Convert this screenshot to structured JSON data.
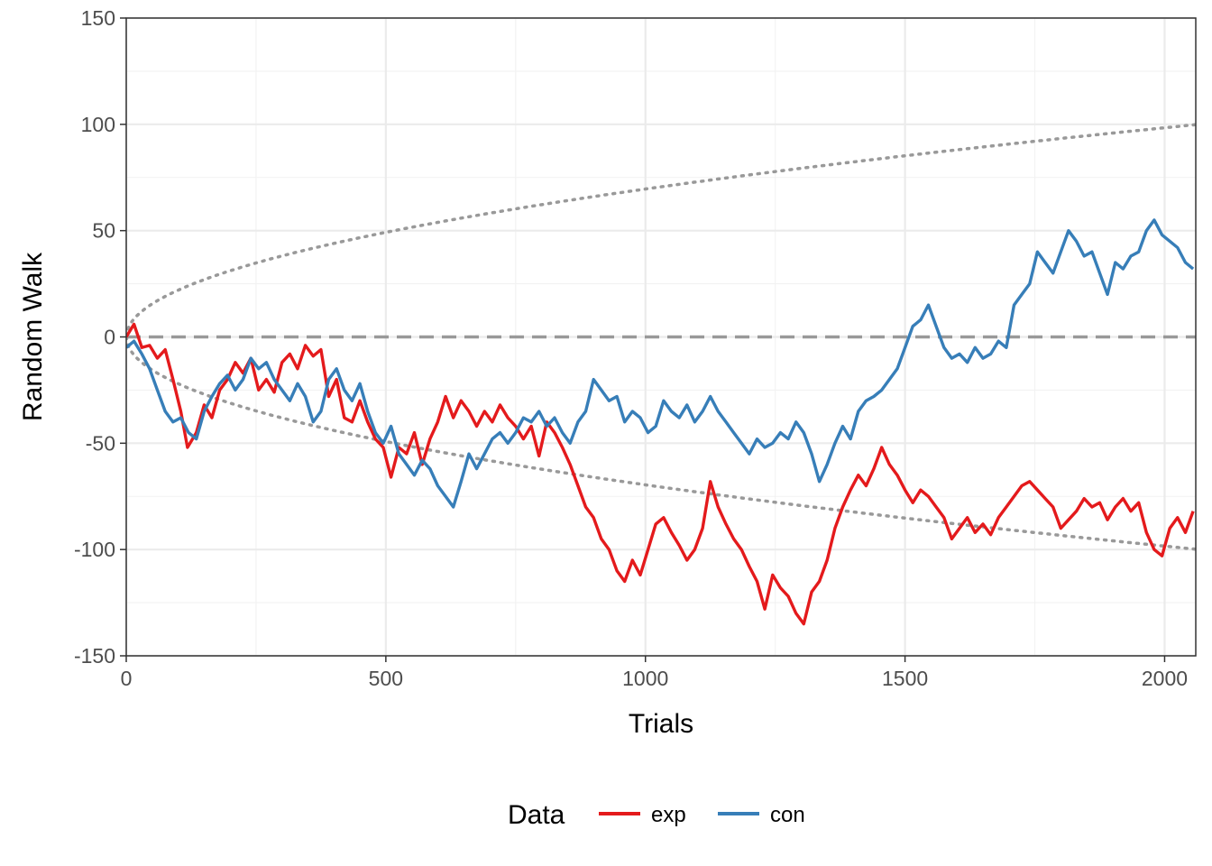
{
  "chart_data": {
    "type": "line",
    "title": "",
    "xlabel": "Trials",
    "ylabel": "Random Walk",
    "xlim": [
      0,
      2060
    ],
    "ylim": [
      -150,
      150
    ],
    "x_ticks": [
      0,
      500,
      1000,
      1500,
      2000
    ],
    "y_ticks": [
      -150,
      -100,
      -50,
      0,
      50,
      100,
      150
    ],
    "x_tick_labels": [
      "0",
      "500",
      "1000",
      "1500",
      "2000"
    ],
    "y_tick_labels": [
      "-150",
      "-100",
      "-50",
      "0",
      "50",
      "100",
      "150"
    ],
    "grid": true,
    "legend": {
      "title": "Data",
      "position": "bottom",
      "entries": [
        {
          "label": "exp",
          "color": "#e41a1c"
        },
        {
          "label": "con",
          "color": "#377eb8"
        }
      ]
    },
    "reference_lines": {
      "zero_line": {
        "y": 0,
        "style": "dashed",
        "color": "#999999"
      },
      "bounds": {
        "formula": "±sqrt(N) times approx 2.2",
        "style": "dotted",
        "color": "#999999"
      }
    },
    "series": [
      {
        "name": "exp",
        "color": "#e41a1c",
        "points": [
          [
            0,
            0
          ],
          [
            15,
            6
          ],
          [
            30,
            -5
          ],
          [
            45,
            -4
          ],
          [
            60,
            -10
          ],
          [
            75,
            -6
          ],
          [
            90,
            -20
          ],
          [
            105,
            -35
          ],
          [
            118,
            -52
          ],
          [
            135,
            -45
          ],
          [
            150,
            -32
          ],
          [
            165,
            -38
          ],
          [
            180,
            -25
          ],
          [
            195,
            -20
          ],
          [
            210,
            -12
          ],
          [
            225,
            -17
          ],
          [
            240,
            -10
          ],
          [
            255,
            -25
          ],
          [
            270,
            -20
          ],
          [
            285,
            -26
          ],
          [
            300,
            -12
          ],
          [
            315,
            -8
          ],
          [
            330,
            -15
          ],
          [
            345,
            -4
          ],
          [
            360,
            -9
          ],
          [
            375,
            -6
          ],
          [
            390,
            -28
          ],
          [
            405,
            -20
          ],
          [
            420,
            -38
          ],
          [
            435,
            -40
          ],
          [
            450,
            -30
          ],
          [
            465,
            -40
          ],
          [
            480,
            -48
          ],
          [
            495,
            -52
          ],
          [
            510,
            -66
          ],
          [
            525,
            -52
          ],
          [
            540,
            -55
          ],
          [
            555,
            -45
          ],
          [
            570,
            -60
          ],
          [
            585,
            -48
          ],
          [
            600,
            -40
          ],
          [
            615,
            -28
          ],
          [
            630,
            -38
          ],
          [
            645,
            -30
          ],
          [
            660,
            -35
          ],
          [
            675,
            -42
          ],
          [
            690,
            -35
          ],
          [
            705,
            -40
          ],
          [
            720,
            -32
          ],
          [
            735,
            -38
          ],
          [
            750,
            -42
          ],
          [
            765,
            -48
          ],
          [
            780,
            -42
          ],
          [
            795,
            -56
          ],
          [
            810,
            -40
          ],
          [
            825,
            -45
          ],
          [
            840,
            -52
          ],
          [
            855,
            -60
          ],
          [
            870,
            -70
          ],
          [
            885,
            -80
          ],
          [
            900,
            -85
          ],
          [
            915,
            -95
          ],
          [
            930,
            -100
          ],
          [
            945,
            -110
          ],
          [
            960,
            -115
          ],
          [
            975,
            -105
          ],
          [
            990,
            -112
          ],
          [
            1005,
            -100
          ],
          [
            1020,
            -88
          ],
          [
            1035,
            -85
          ],
          [
            1050,
            -92
          ],
          [
            1065,
            -98
          ],
          [
            1080,
            -105
          ],
          [
            1095,
            -100
          ],
          [
            1110,
            -90
          ],
          [
            1125,
            -68
          ],
          [
            1140,
            -80
          ],
          [
            1155,
            -88
          ],
          [
            1170,
            -95
          ],
          [
            1185,
            -100
          ],
          [
            1200,
            -108
          ],
          [
            1215,
            -115
          ],
          [
            1230,
            -128
          ],
          [
            1245,
            -112
          ],
          [
            1260,
            -118
          ],
          [
            1275,
            -122
          ],
          [
            1290,
            -130
          ],
          [
            1305,
            -135
          ],
          [
            1320,
            -120
          ],
          [
            1335,
            -115
          ],
          [
            1350,
            -105
          ],
          [
            1365,
            -90
          ],
          [
            1380,
            -80
          ],
          [
            1395,
            -72
          ],
          [
            1410,
            -65
          ],
          [
            1425,
            -70
          ],
          [
            1440,
            -62
          ],
          [
            1455,
            -52
          ],
          [
            1470,
            -60
          ],
          [
            1485,
            -65
          ],
          [
            1500,
            -72
          ],
          [
            1515,
            -78
          ],
          [
            1530,
            -72
          ],
          [
            1545,
            -75
          ],
          [
            1560,
            -80
          ],
          [
            1575,
            -85
          ],
          [
            1590,
            -95
          ],
          [
            1605,
            -90
          ],
          [
            1620,
            -85
          ],
          [
            1635,
            -92
          ],
          [
            1650,
            -88
          ],
          [
            1665,
            -93
          ],
          [
            1680,
            -85
          ],
          [
            1695,
            -80
          ],
          [
            1710,
            -75
          ],
          [
            1725,
            -70
          ],
          [
            1740,
            -68
          ],
          [
            1755,
            -72
          ],
          [
            1770,
            -76
          ],
          [
            1785,
            -80
          ],
          [
            1800,
            -90
          ],
          [
            1815,
            -86
          ],
          [
            1830,
            -82
          ],
          [
            1845,
            -76
          ],
          [
            1860,
            -80
          ],
          [
            1875,
            -78
          ],
          [
            1890,
            -86
          ],
          [
            1905,
            -80
          ],
          [
            1920,
            -76
          ],
          [
            1935,
            -82
          ],
          [
            1950,
            -78
          ],
          [
            1965,
            -92
          ],
          [
            1980,
            -100
          ],
          [
            1995,
            -103
          ],
          [
            2010,
            -90
          ],
          [
            2025,
            -85
          ],
          [
            2040,
            -92
          ],
          [
            2055,
            -82
          ]
        ]
      },
      {
        "name": "con",
        "color": "#377eb8",
        "points": [
          [
            0,
            -5
          ],
          [
            15,
            -2
          ],
          [
            30,
            -8
          ],
          [
            45,
            -15
          ],
          [
            60,
            -25
          ],
          [
            75,
            -35
          ],
          [
            90,
            -40
          ],
          [
            105,
            -38
          ],
          [
            120,
            -45
          ],
          [
            135,
            -48
          ],
          [
            150,
            -35
          ],
          [
            165,
            -28
          ],
          [
            180,
            -22
          ],
          [
            195,
            -18
          ],
          [
            210,
            -25
          ],
          [
            225,
            -20
          ],
          [
            240,
            -10
          ],
          [
            255,
            -15
          ],
          [
            270,
            -12
          ],
          [
            285,
            -20
          ],
          [
            300,
            -25
          ],
          [
            315,
            -30
          ],
          [
            330,
            -22
          ],
          [
            345,
            -28
          ],
          [
            360,
            -40
          ],
          [
            375,
            -35
          ],
          [
            390,
            -20
          ],
          [
            405,
            -15
          ],
          [
            420,
            -25
          ],
          [
            435,
            -30
          ],
          [
            450,
            -22
          ],
          [
            465,
            -35
          ],
          [
            480,
            -45
          ],
          [
            495,
            -50
          ],
          [
            510,
            -42
          ],
          [
            525,
            -55
          ],
          [
            540,
            -60
          ],
          [
            555,
            -65
          ],
          [
            570,
            -58
          ],
          [
            585,
            -62
          ],
          [
            600,
            -70
          ],
          [
            615,
            -75
          ],
          [
            630,
            -80
          ],
          [
            645,
            -68
          ],
          [
            660,
            -55
          ],
          [
            675,
            -62
          ],
          [
            690,
            -55
          ],
          [
            705,
            -48
          ],
          [
            720,
            -45
          ],
          [
            735,
            -50
          ],
          [
            750,
            -45
          ],
          [
            765,
            -38
          ],
          [
            780,
            -40
          ],
          [
            795,
            -35
          ],
          [
            810,
            -42
          ],
          [
            825,
            -38
          ],
          [
            840,
            -45
          ],
          [
            855,
            -50
          ],
          [
            870,
            -40
          ],
          [
            885,
            -35
          ],
          [
            900,
            -20
          ],
          [
            915,
            -25
          ],
          [
            930,
            -30
          ],
          [
            945,
            -28
          ],
          [
            960,
            -40
          ],
          [
            975,
            -35
          ],
          [
            990,
            -38
          ],
          [
            1005,
            -45
          ],
          [
            1020,
            -42
          ],
          [
            1035,
            -30
          ],
          [
            1050,
            -35
          ],
          [
            1065,
            -38
          ],
          [
            1080,
            -32
          ],
          [
            1095,
            -40
          ],
          [
            1110,
            -35
          ],
          [
            1125,
            -28
          ],
          [
            1140,
            -35
          ],
          [
            1155,
            -40
          ],
          [
            1170,
            -45
          ],
          [
            1185,
            -50
          ],
          [
            1200,
            -55
          ],
          [
            1215,
            -48
          ],
          [
            1230,
            -52
          ],
          [
            1245,
            -50
          ],
          [
            1260,
            -45
          ],
          [
            1275,
            -48
          ],
          [
            1290,
            -40
          ],
          [
            1305,
            -45
          ],
          [
            1320,
            -55
          ],
          [
            1335,
            -68
          ],
          [
            1350,
            -60
          ],
          [
            1365,
            -50
          ],
          [
            1380,
            -42
          ],
          [
            1395,
            -48
          ],
          [
            1410,
            -35
          ],
          [
            1425,
            -30
          ],
          [
            1440,
            -28
          ],
          [
            1455,
            -25
          ],
          [
            1470,
            -20
          ],
          [
            1485,
            -15
          ],
          [
            1500,
            -5
          ],
          [
            1515,
            5
          ],
          [
            1530,
            8
          ],
          [
            1545,
            15
          ],
          [
            1560,
            5
          ],
          [
            1575,
            -5
          ],
          [
            1590,
            -10
          ],
          [
            1605,
            -8
          ],
          [
            1620,
            -12
          ],
          [
            1635,
            -5
          ],
          [
            1650,
            -10
          ],
          [
            1665,
            -8
          ],
          [
            1680,
            -2
          ],
          [
            1695,
            -5
          ],
          [
            1710,
            15
          ],
          [
            1725,
            20
          ],
          [
            1740,
            25
          ],
          [
            1755,
            40
          ],
          [
            1770,
            35
          ],
          [
            1785,
            30
          ],
          [
            1800,
            40
          ],
          [
            1815,
            50
          ],
          [
            1830,
            45
          ],
          [
            1845,
            38
          ],
          [
            1860,
            40
          ],
          [
            1875,
            30
          ],
          [
            1890,
            20
          ],
          [
            1905,
            35
          ],
          [
            1920,
            32
          ],
          [
            1935,
            38
          ],
          [
            1950,
            40
          ],
          [
            1965,
            50
          ],
          [
            1980,
            55
          ],
          [
            1995,
            48
          ],
          [
            2010,
            45
          ],
          [
            2025,
            42
          ],
          [
            2040,
            35
          ],
          [
            2055,
            32
          ]
        ]
      }
    ]
  }
}
